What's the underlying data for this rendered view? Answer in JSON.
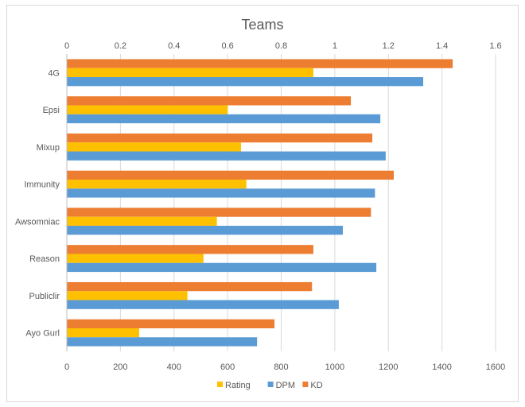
{
  "chart_data": {
    "type": "bar",
    "orientation": "horizontal",
    "title": "Teams",
    "categories": [
      "4G",
      "Epsi",
      "Mixup",
      "Immunity",
      "Awsomniac",
      "Reason",
      "Publiclir",
      "Ayo Gurl"
    ],
    "series": [
      {
        "name": "Rating",
        "axis": "top",
        "color": "#FFC000",
        "values": [
          0.92,
          0.6,
          0.65,
          0.67,
          0.56,
          0.51,
          0.45,
          0.27
        ]
      },
      {
        "name": "DPM",
        "axis": "bottom",
        "color": "#5B9BD5",
        "values": [
          1330,
          1170,
          1190,
          1150,
          1030,
          1155,
          1015,
          710
        ]
      },
      {
        "name": "KD",
        "axis": "top",
        "color": "#ED7D31",
        "values": [
          1.44,
          1.06,
          1.14,
          1.22,
          1.135,
          0.92,
          0.915,
          0.775
        ]
      }
    ],
    "top_axis": {
      "min": 0,
      "max": 1.6,
      "ticks": [
        "0",
        "0.2",
        "0.4",
        "0.6",
        "0.8",
        "1",
        "1.2",
        "1.4",
        "1.6"
      ]
    },
    "bottom_axis": {
      "min": 0,
      "max": 1600,
      "ticks": [
        "0",
        "200",
        "400",
        "600",
        "800",
        "1000",
        "1200",
        "1400",
        "1600"
      ]
    },
    "grid": "vertical",
    "legend": {
      "position": "bottom",
      "entries": [
        "Rating",
        "DPM",
        "KD"
      ]
    }
  }
}
